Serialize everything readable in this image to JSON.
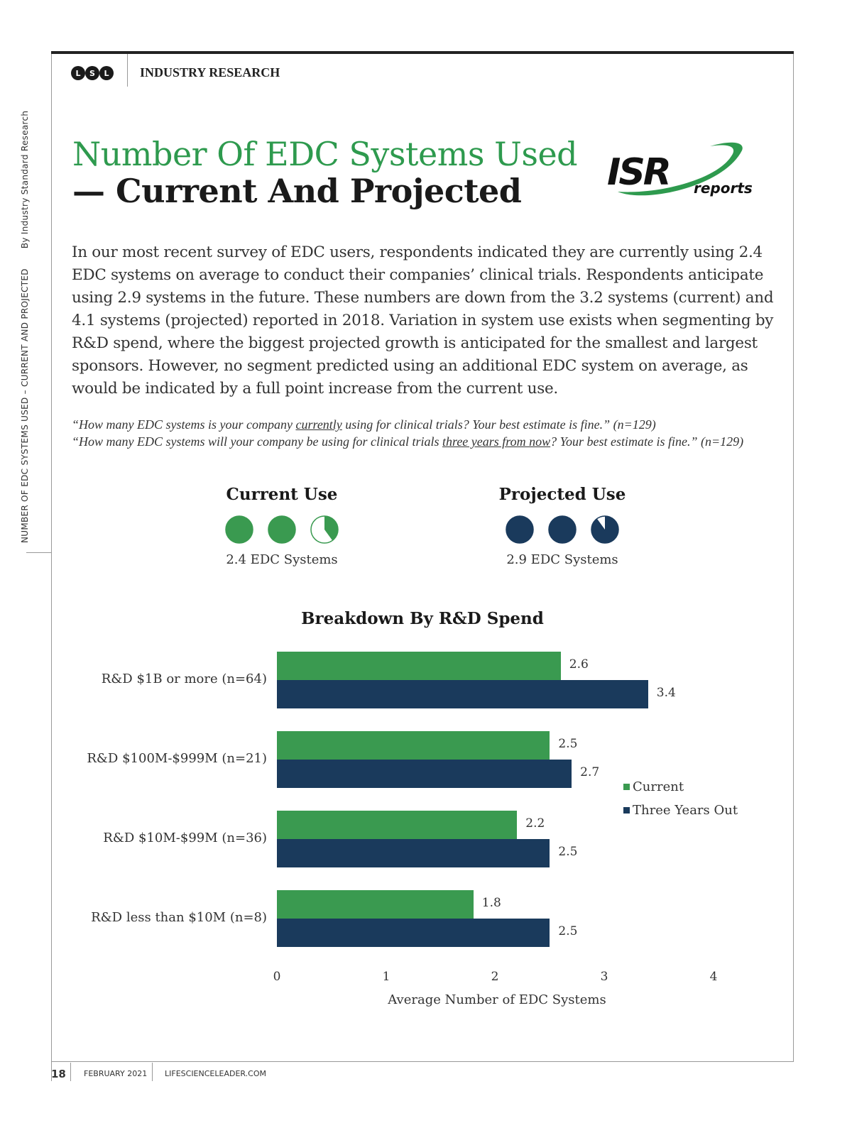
{
  "header": {
    "logo_letters": [
      "L",
      "S",
      "L"
    ],
    "section": "INDUSTRY RESEARCH"
  },
  "sidebar": {
    "topic": "NUMBER OF EDC SYSTEMS USED – CURRENT AND PROJECTED",
    "byline": "By Industry Standard Research"
  },
  "title": {
    "line1": "Number Of EDC Systems Used",
    "line2": "— Current And Projected"
  },
  "brand_logo": {
    "main": "ISR",
    "sub": "reports"
  },
  "intro": "In our most recent survey of EDC users, respondents indicated they are currently using 2.4 EDC systems on average to conduct their companies’ clinical trials. Respondents anticipate using 2.9 systems in the future. These numbers are down from the 3.2 systems (current) and 4.1 systems (projected) reported in 2018. Variation in system use exists when segmenting by R&D spend, where the biggest projected growth is anticipated for the smallest and largest sponsors. However, no segment predicted using an additional EDC system on average, as would be indicated by a full point increase from the current use.",
  "questions": {
    "q1_pre": "“How many EDC systems is your company ",
    "q1_u": "currently",
    "q1_post": " using for clinical trials? Your best estimate is fine.” (n=129)",
    "q2_pre": "“How many EDC systems will your company be using for clinical trials ",
    "q2_u": "three years from now",
    "q2_post": "? Your best estimate is fine.” (n=129)"
  },
  "summary": [
    {
      "title": "Current Use",
      "value": 2.4,
      "caption": "2.4 EDC Systems",
      "color": "#3a9a50"
    },
    {
      "title": "Projected Use",
      "value": 2.9,
      "caption": "2.9 EDC Systems",
      "color": "#1a3a5c"
    }
  ],
  "chart_data": {
    "type": "bar",
    "orientation": "horizontal",
    "title": "Breakdown By R&D Spend",
    "categories": [
      "R&D $1B or more (n=64)",
      "R&D $100M-$999M (n=21)",
      "R&D $10M-$99M (n=36)",
      "R&D less than $10M (n=8)"
    ],
    "series": [
      {
        "name": "Current",
        "color": "#3a9a50",
        "values": [
          2.6,
          2.5,
          2.2,
          1.8
        ],
        "labels": [
          "2.6",
          "2.5",
          "2.2",
          "1.8"
        ]
      },
      {
        "name": "Three Years Out",
        "color": "#1a3a5c",
        "values": [
          3.4,
          2.7,
          2.5,
          2.5
        ],
        "labels": [
          "3.4",
          "2.7",
          "2.5",
          "2.5"
        ]
      }
    ],
    "xlim": [
      0,
      4
    ],
    "xticks": [
      "0",
      "1",
      "2",
      "3",
      "4"
    ],
    "xlabel": "Average Number of EDC Systems",
    "legend": "right"
  },
  "footer": {
    "page": "18",
    "date": "FEBRUARY 2021",
    "site": "LIFESCIENCELEADER.COM"
  }
}
